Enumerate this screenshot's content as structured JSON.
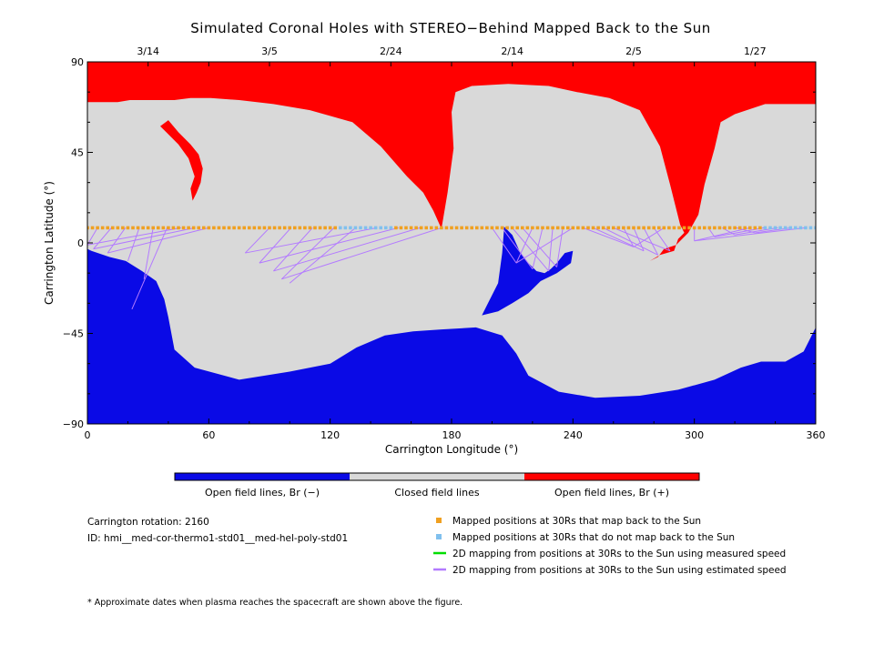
{
  "chart_data": {
    "type": "heatmap",
    "title": "Simulated Coronal Holes with STEREO−Behind Mapped Back to the Sun",
    "xlabel": "Carrington Longitude (°)",
    "ylabel": "Carrington Latitude (°)",
    "xlim": [
      0,
      360
    ],
    "ylim": [
      -90,
      90
    ],
    "x_ticks": [
      0,
      60,
      120,
      180,
      240,
      300,
      360
    ],
    "y_ticks": [
      -90,
      -45,
      0,
      45,
      90
    ],
    "x_tick_labels": [
      "0",
      "60",
      "120",
      "180",
      "240",
      "300",
      "360"
    ],
    "y_tick_labels": [
      "−90",
      "−45",
      "0",
      "45",
      "90"
    ],
    "top_axis": [
      {
        "label": "3/14",
        "lon": 30
      },
      {
        "label": "3/5",
        "lon": 90
      },
      {
        "label": "2/24",
        "lon": 150
      },
      {
        "label": "2/14",
        "lon": 210
      },
      {
        "label": "2/5",
        "lon": 270
      },
      {
        "label": "1/27",
        "lon": 330
      }
    ],
    "colorbar": {
      "segments": [
        {
          "label": "Open field lines, Br (−)",
          "color": "#0a0ae6"
        },
        {
          "label": "Closed field lines",
          "color": "#d9d9d9"
        },
        {
          "label": "Open field lines, Br (+)",
          "color": "#ff0000"
        }
      ]
    },
    "regions": {
      "north_open_positive": [
        [
          0,
          90
        ],
        [
          360,
          90
        ],
        [
          360,
          69
        ],
        [
          335,
          69
        ],
        [
          320,
          64
        ],
        [
          313,
          60
        ],
        [
          310,
          47
        ],
        [
          305,
          29
        ],
        [
          302,
          14
        ],
        [
          297,
          5
        ],
        [
          291,
          -1
        ],
        [
          285,
          -3
        ],
        [
          282,
          -7
        ],
        [
          278,
          -9
        ],
        [
          283,
          -6
        ],
        [
          290,
          -4
        ],
        [
          292,
          2
        ],
        [
          295,
          5
        ],
        [
          293,
          9
        ],
        [
          288,
          29
        ],
        [
          283,
          48
        ],
        [
          273,
          66
        ],
        [
          258,
          72
        ],
        [
          242,
          75
        ],
        [
          228,
          78
        ],
        [
          208,
          79
        ],
        [
          190,
          78
        ],
        [
          182,
          75
        ],
        [
          180,
          65
        ],
        [
          181,
          47
        ],
        [
          178,
          25
        ],
        [
          175,
          7
        ],
        [
          171,
          16
        ],
        [
          166,
          25
        ],
        [
          158,
          33
        ],
        [
          151,
          41
        ],
        [
          145,
          48
        ],
        [
          131,
          60
        ],
        [
          110,
          66
        ],
        [
          92,
          69
        ],
        [
          75,
          71
        ],
        [
          61,
          72
        ],
        [
          51,
          72
        ],
        [
          43,
          71
        ],
        [
          31,
          71
        ],
        [
          21,
          71
        ],
        [
          15,
          70
        ],
        [
          1,
          70
        ],
        [
          0,
          70
        ]
      ],
      "north_open_positive_lobe": [
        [
          40,
          61
        ],
        [
          45,
          55
        ],
        [
          51,
          49
        ],
        [
          55,
          44
        ],
        [
          57,
          37
        ],
        [
          56,
          30
        ],
        [
          54,
          25
        ],
        [
          52,
          21
        ],
        [
          51,
          27
        ],
        [
          53,
          33
        ],
        [
          50,
          42
        ],
        [
          45,
          49
        ],
        [
          39,
          55
        ],
        [
          36,
          58
        ]
      ],
      "south_open_negative": [
        [
          0,
          -90
        ],
        [
          360,
          -90
        ],
        [
          360,
          -42
        ],
        [
          354,
          -54
        ],
        [
          345,
          -59
        ],
        [
          333,
          -59
        ],
        [
          323,
          -62
        ],
        [
          310,
          -68
        ],
        [
          292,
          -73
        ],
        [
          273,
          -76
        ],
        [
          251,
          -77
        ],
        [
          233,
          -74
        ],
        [
          218,
          -66
        ],
        [
          212,
          -55
        ],
        [
          205,
          -46
        ],
        [
          192,
          -42
        ],
        [
          175,
          -43
        ],
        [
          161,
          -44
        ],
        [
          147,
          -46
        ],
        [
          133,
          -52
        ],
        [
          120,
          -60
        ],
        [
          100,
          -64
        ],
        [
          75,
          -68
        ],
        [
          53,
          -62
        ],
        [
          43,
          -53
        ],
        [
          40,
          -37
        ],
        [
          38,
          -28
        ],
        [
          34,
          -19
        ],
        [
          27,
          -14
        ],
        [
          19,
          -9
        ],
        [
          11,
          -7
        ],
        [
          2,
          -4
        ],
        [
          0,
          -3
        ]
      ],
      "south_open_negative_equatorial": [
        [
          206,
          8
        ],
        [
          210,
          4
        ],
        [
          214,
          -5
        ],
        [
          218,
          -10
        ],
        [
          222,
          -14
        ],
        [
          226,
          -15
        ],
        [
          229,
          -13
        ],
        [
          232,
          -10
        ],
        [
          236,
          -5
        ],
        [
          240,
          -4
        ],
        [
          239,
          -10
        ],
        [
          232,
          -15
        ],
        [
          224,
          -19
        ],
        [
          218,
          -25
        ],
        [
          210,
          -30
        ],
        [
          203,
          -34
        ],
        [
          195,
          -36
        ],
        [
          198,
          -30
        ],
        [
          203,
          -20
        ],
        [
          205,
          -5
        ]
      ]
    },
    "mapped_points": {
      "latitude": 7.5,
      "maps_back_color": "#f0a020",
      "no_map_back_color": "#80c0ee",
      "no_map_back_lon_ranges": [
        [
          125,
          150
        ],
        [
          335,
          360
        ]
      ]
    },
    "mapping_lines": {
      "estimated_speed_color": "#b37aff",
      "measured_speed_color": "#00dd00",
      "fans": [
        {
          "from_lon": [
            5,
            60
          ],
          "to": [
            [
              0,
              -1
            ],
            [
              3,
              -3
            ],
            [
              10,
              -5
            ],
            [
              20,
              -9
            ],
            [
              28,
              -18
            ],
            [
              22,
              -33
            ]
          ]
        },
        {
          "from_lon": [
            90,
            175
          ],
          "to": [
            [
              78,
              -5
            ],
            [
              85,
              -10
            ],
            [
              92,
              -14
            ],
            [
              96,
              -18
            ],
            [
              100,
              -20
            ]
          ]
        },
        {
          "from_lon": [
            200,
            240
          ],
          "to": [
            [
              212,
              -10
            ],
            [
              220,
              -13
            ],
            [
              228,
              -14
            ],
            [
              232,
              -12
            ]
          ]
        },
        {
          "from_lon": [
            245,
            285
          ],
          "to": [
            [
              270,
              -2
            ],
            [
              275,
              -4
            ],
            [
              282,
              -6
            ],
            [
              288,
              -4
            ]
          ]
        },
        {
          "from_lon": [
            300,
            355
          ],
          "to": [
            [
              300,
              1
            ],
            [
              310,
              3
            ],
            [
              320,
              4
            ],
            [
              330,
              5
            ]
          ]
        }
      ]
    }
  },
  "legend": {
    "items": [
      {
        "label": "Mapped positions at 30Rs that map back to the Sun",
        "kind": "square",
        "color": "#f0a020"
      },
      {
        "label": "Mapped positions at 30Rs that do not map back to the Sun",
        "kind": "square",
        "color": "#80c0ee"
      },
      {
        "label": "2D mapping from positions at 30Rs to the Sun using measured speed",
        "kind": "line",
        "color": "#00dd00"
      },
      {
        "label": "2D mapping from positions at 30Rs to the Sun using estimated speed",
        "kind": "line",
        "color": "#b37aff"
      }
    ]
  },
  "info": {
    "rotation": "Carrington rotation: 2160",
    "id": "ID: hmi__med-cor-thermo1-std01__med-hel-poly-std01"
  },
  "footnote": "* Approximate dates when plasma reaches the spacecraft are shown above the figure."
}
